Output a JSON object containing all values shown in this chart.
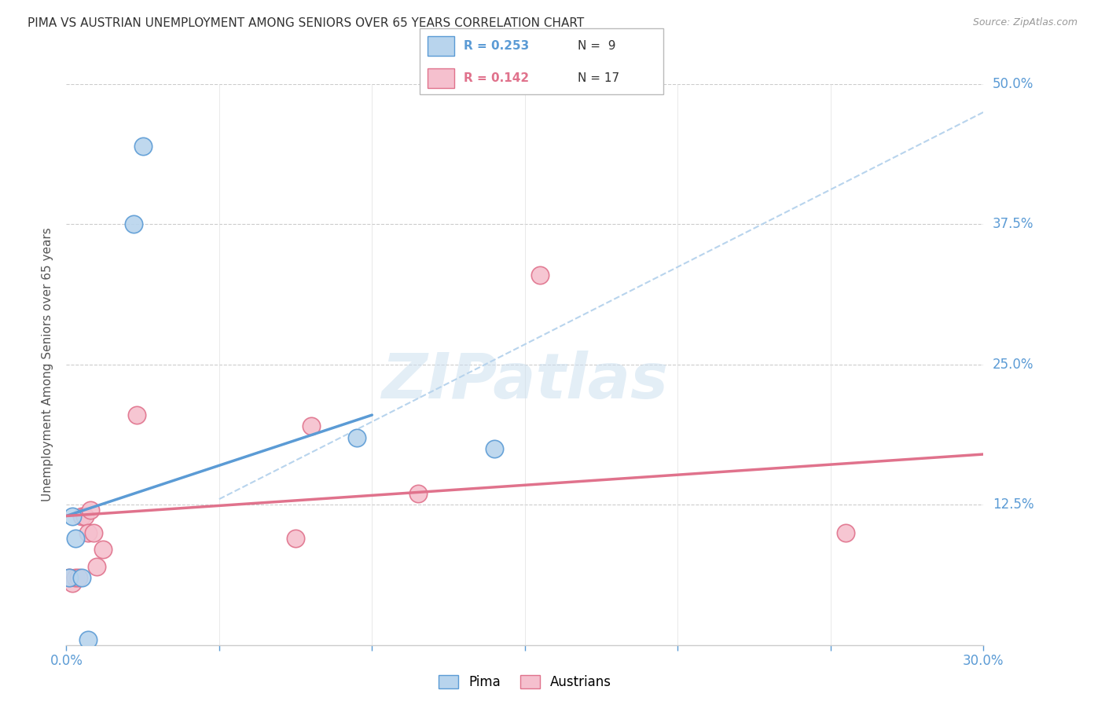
{
  "title": "PIMA VS AUSTRIAN UNEMPLOYMENT AMONG SENIORS OVER 65 YEARS CORRELATION CHART",
  "source": "Source: ZipAtlas.com",
  "ylabel": "Unemployment Among Seniors over 65 years",
  "xlim": [
    0.0,
    0.3
  ],
  "ylim": [
    0.0,
    0.5
  ],
  "yticks": [
    0.0,
    0.125,
    0.25,
    0.375,
    0.5
  ],
  "ytick_labels": [
    "",
    "12.5%",
    "25.0%",
    "37.5%",
    "50.0%"
  ],
  "watermark_text": "ZIPatlas",
  "pima_color": "#b8d4ed",
  "pima_edge_color": "#5b9bd5",
  "austrians_color": "#f5c0ce",
  "austrians_edge_color": "#e0728c",
  "pima_line_color": "#5b9bd5",
  "austrians_line_color": "#e0728c",
  "dashed_line_color": "#b8d4ed",
  "legend_R_pima": "R = 0.253",
  "legend_N_pima": "N =  9",
  "legend_R_austrians": "R = 0.142",
  "legend_N_austrians": "N = 17",
  "pima_points_x": [
    0.001,
    0.002,
    0.003,
    0.005,
    0.007,
    0.022,
    0.025,
    0.095,
    0.14
  ],
  "pima_points_y": [
    0.06,
    0.115,
    0.095,
    0.06,
    0.005,
    0.375,
    0.445,
    0.185,
    0.175
  ],
  "austrians_points_x": [
    0.001,
    0.002,
    0.003,
    0.004,
    0.005,
    0.006,
    0.007,
    0.008,
    0.009,
    0.01,
    0.012,
    0.023,
    0.075,
    0.08,
    0.115,
    0.155,
    0.255
  ],
  "austrians_points_y": [
    0.06,
    0.055,
    0.06,
    0.06,
    0.115,
    0.115,
    0.1,
    0.12,
    0.1,
    0.07,
    0.085,
    0.205,
    0.095,
    0.195,
    0.135,
    0.33,
    0.1
  ],
  "pima_trendline_x": [
    0.0,
    0.1
  ],
  "pima_trendline_y": [
    0.115,
    0.205
  ],
  "austrians_trendline_x": [
    0.0,
    0.3
  ],
  "austrians_trendline_y": [
    0.115,
    0.17
  ],
  "dashed_trendline_x": [
    0.05,
    0.3
  ],
  "dashed_trendline_y": [
    0.13,
    0.475
  ]
}
